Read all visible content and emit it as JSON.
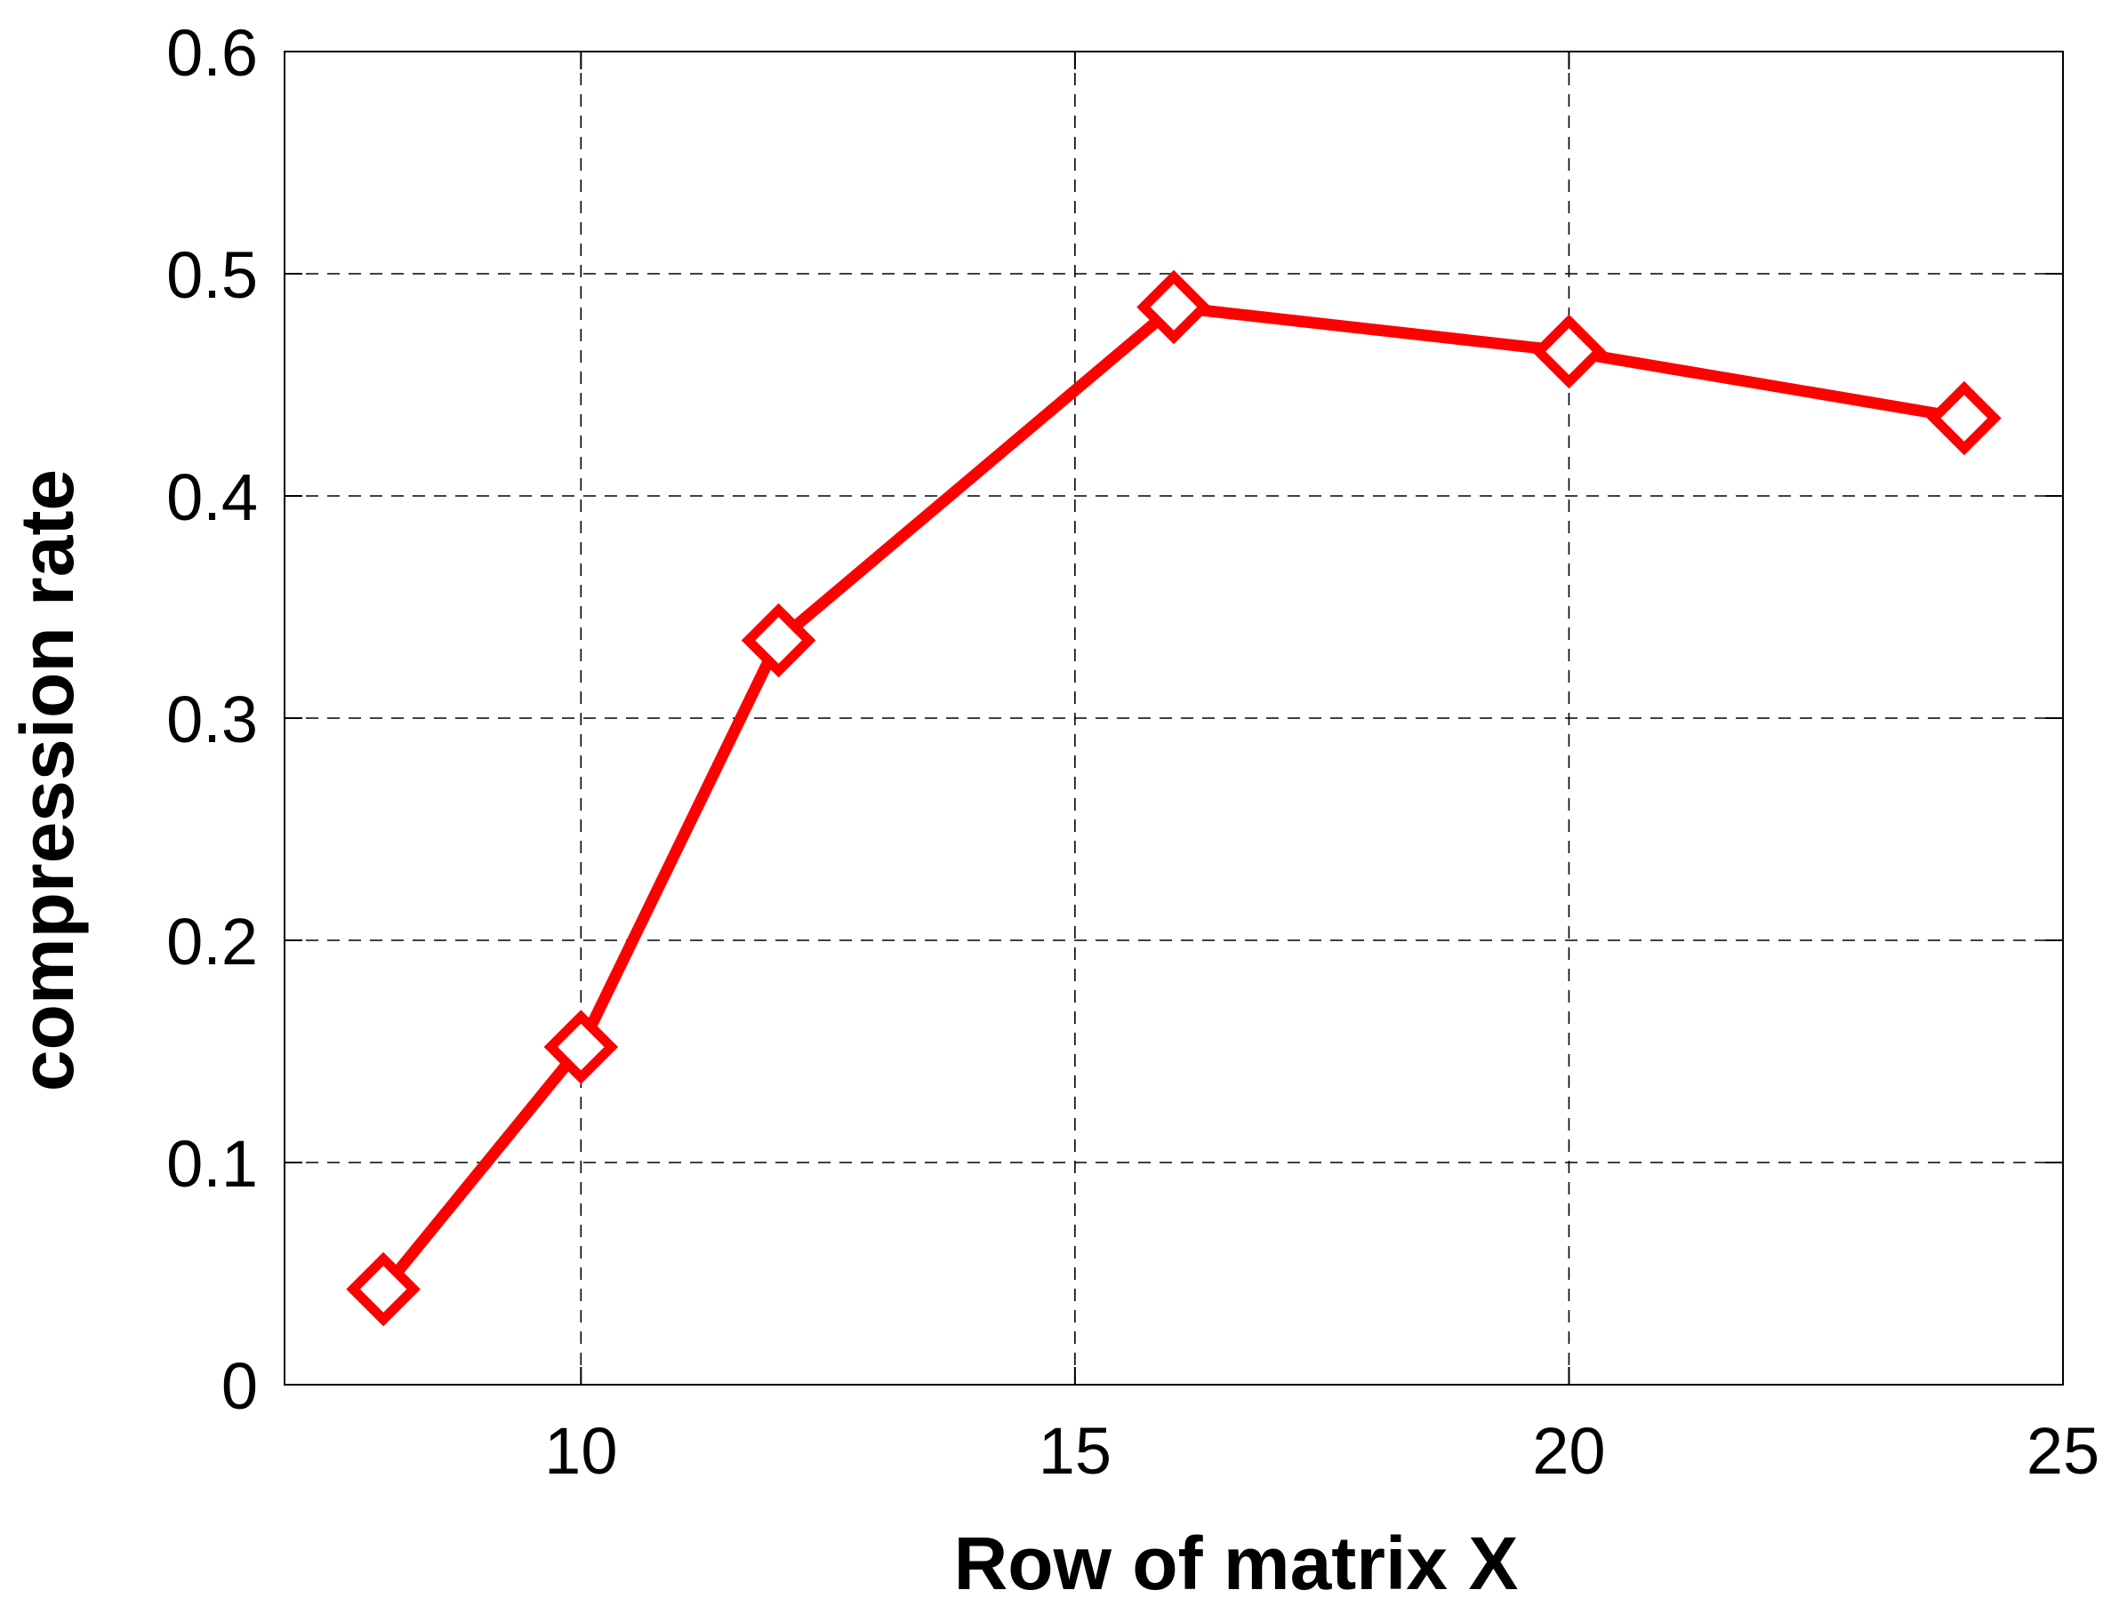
{
  "chart_data": {
    "type": "line",
    "title": "",
    "xlabel": "Row of matrix X",
    "ylabel": "compression rate",
    "xlim": [
      7,
      25
    ],
    "ylim": [
      0,
      0.6
    ],
    "xticks": [
      10,
      15,
      20,
      25
    ],
    "yticks": [
      0,
      0.1,
      0.2,
      0.3,
      0.4,
      0.5,
      0.6
    ],
    "xtick_labels": [
      "10",
      "15",
      "20",
      "25"
    ],
    "ytick_labels": [
      "0",
      "0.1",
      "0.2",
      "0.3",
      "0.4",
      "0.5",
      "0.6"
    ],
    "grid": true,
    "grid_style": "dashed",
    "legend": "none",
    "series": [
      {
        "x": [
          8,
          10,
          12,
          16,
          20,
          24
        ],
        "y": [
          0.043,
          0.152,
          0.335,
          0.485,
          0.465,
          0.435
        ],
        "color": "#ff0000",
        "marker": "diamond"
      }
    ]
  }
}
